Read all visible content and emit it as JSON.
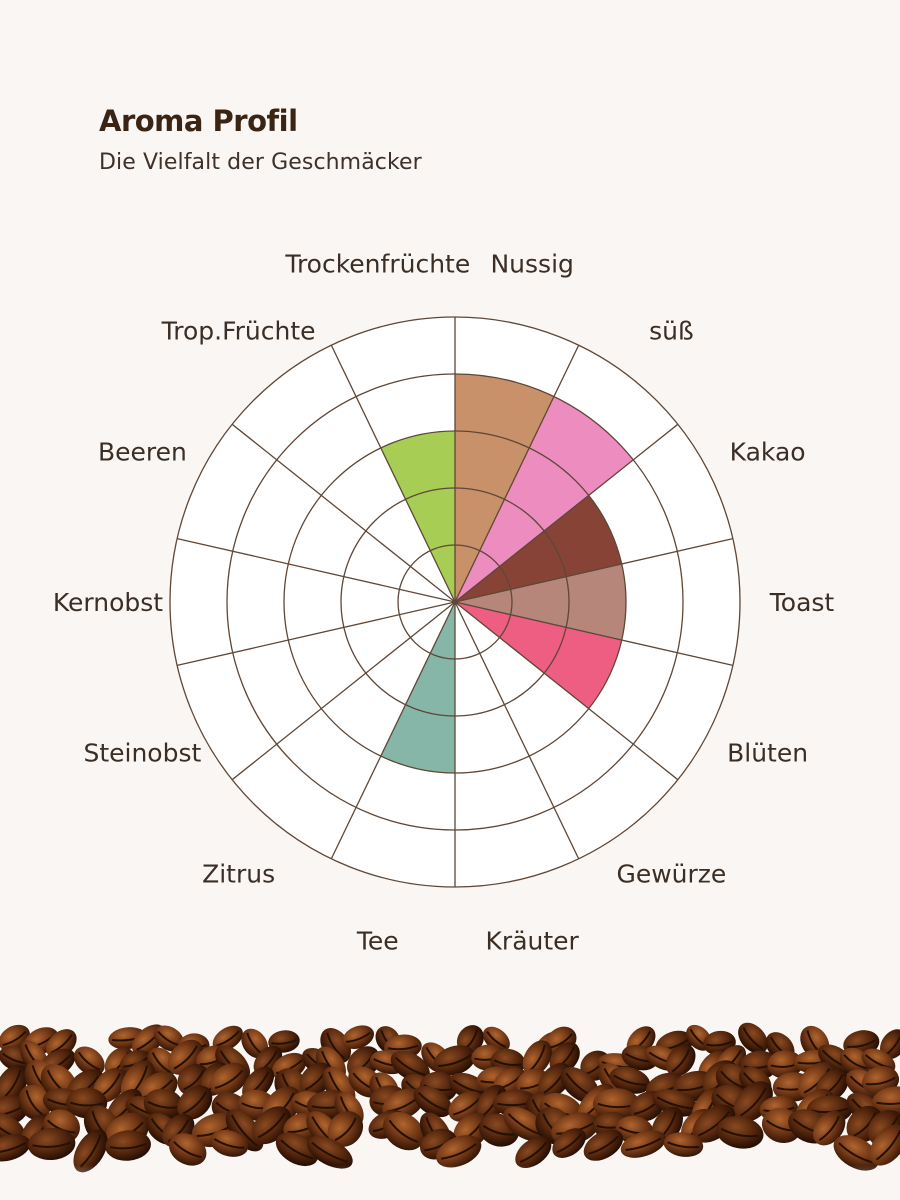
{
  "header": {
    "title": "Aroma Profil",
    "subtitle": "Die Vielfalt der Geschmäcker"
  },
  "chart_data": {
    "type": "polar-area",
    "title": "Aroma Profil",
    "subtitle": "Die Vielfalt der Geschmäcker",
    "rmax": 5,
    "rings": 5,
    "grid": true,
    "categories": [
      "Nussig",
      "süß",
      "Kakao",
      "Toast",
      "Blüten",
      "Gewürze",
      "Kräuter",
      "Tee",
      "Zitrus",
      "Steinobst",
      "Kernobst",
      "Beeren",
      "Trop.Früchte",
      "Trockenfrüchte"
    ],
    "values": [
      4,
      4,
      3,
      3,
      3,
      0,
      0,
      3,
      0,
      0,
      0,
      0,
      0,
      3
    ],
    "colors": [
      "#c99169",
      "#ec8cbf",
      "#874436",
      "#b58679",
      "#ee5e83",
      "#ffffff",
      "#ffffff",
      "#86b6a8",
      "#ffffff",
      "#ffffff",
      "#ffffff",
      "#ffffff",
      "#ffffff",
      "#a8cd55"
    ],
    "grid_color": "#5e4737"
  },
  "decoration": {
    "image": "coffee-beans-row"
  }
}
